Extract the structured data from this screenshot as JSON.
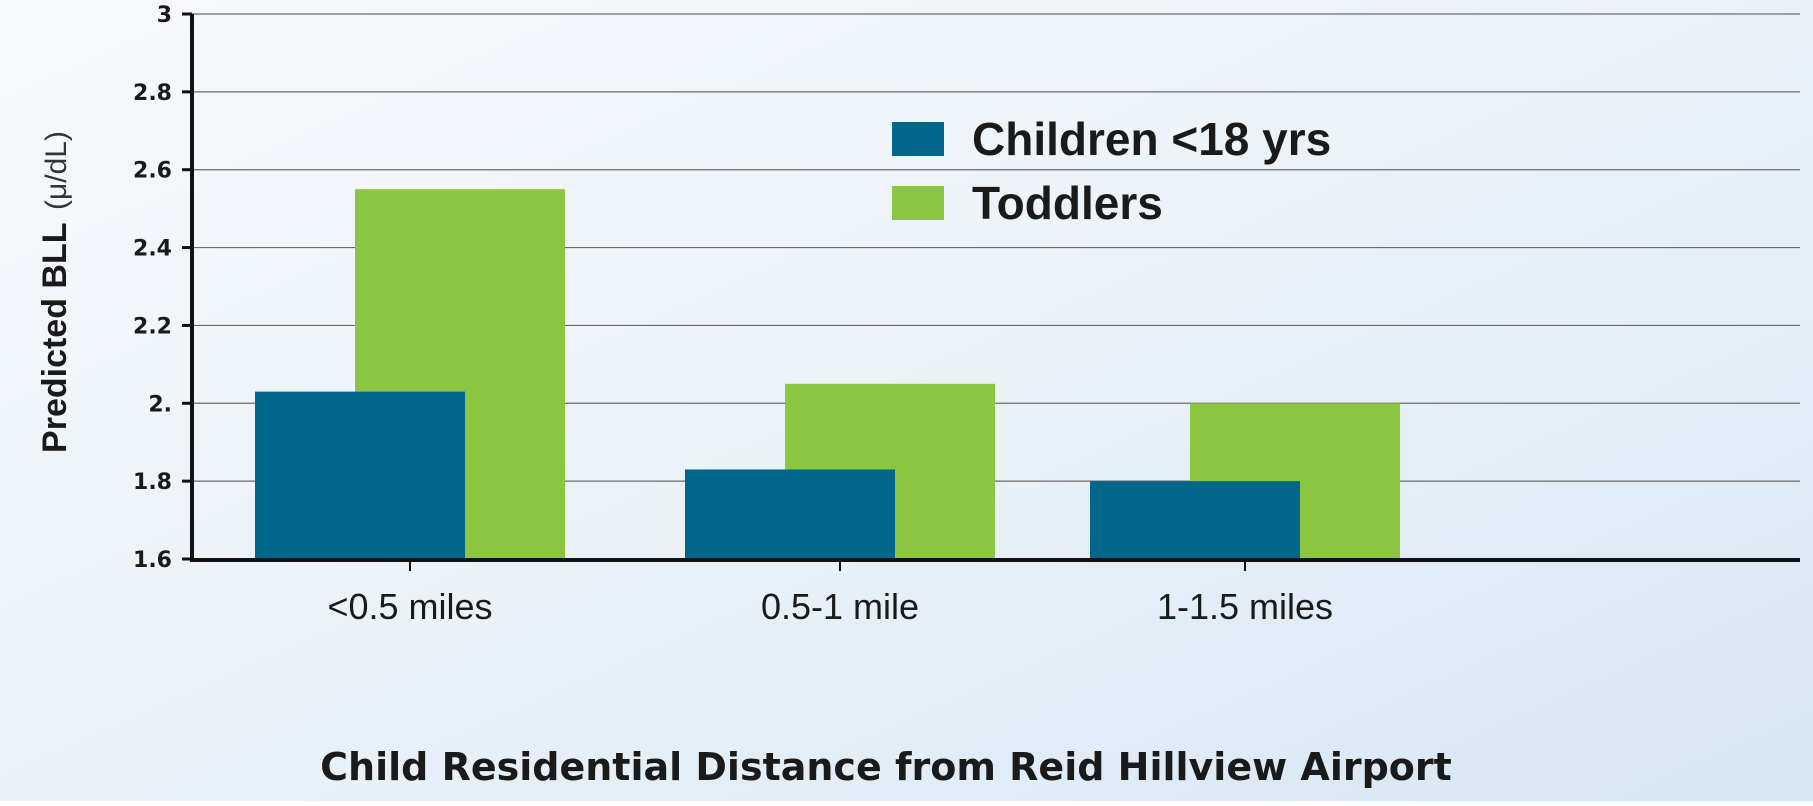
{
  "colors": {
    "children": "#00678a",
    "toddlers": "#8cc641",
    "grid": "#6b6b6b",
    "axis": "#111111"
  },
  "chart_data": {
    "type": "bar",
    "title": "",
    "xlabel": "Child Residential Distance from Reid Hillview Airport",
    "ylabel": "Predicted BLL",
    "ylabel_unit": "(μ/dL)",
    "ylim": [
      1.6,
      3.0
    ],
    "yticks": [
      1.6,
      1.8,
      2.0,
      2.2,
      2.4,
      2.6,
      2.8,
      3.0
    ],
    "ytick_labels": [
      "1.6",
      "1.8",
      "2.",
      "2.2",
      "2.4",
      "2.6",
      "2.8",
      "3"
    ],
    "grid": true,
    "legend_position": "top-right",
    "categories": [
      "<0.5 miles",
      "0.5-1 mile",
      "1-1.5 miles"
    ],
    "series": [
      {
        "name": "Children <18 yrs",
        "values": [
          2.03,
          1.83,
          1.8
        ]
      },
      {
        "name": "Toddlers",
        "values": [
          2.55,
          2.05,
          2.0
        ]
      }
    ]
  }
}
